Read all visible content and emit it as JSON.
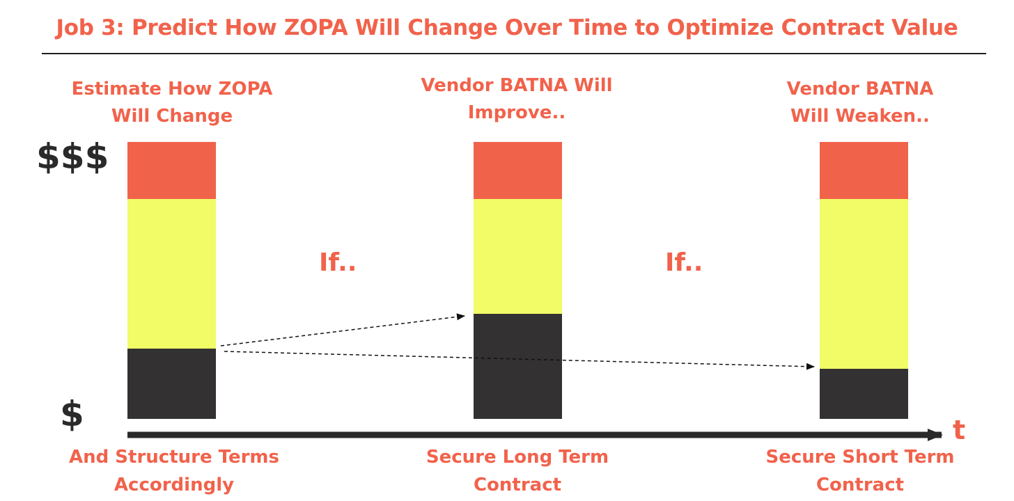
{
  "title": "Job 3: Predict How ZOPA Will Change Over Time to Optimize Contract Value",
  "columns": [
    {
      "heading": [
        "Estimate How ZOPA",
        "Will Change"
      ],
      "footer": [
        "And Structure Terms",
        "Accordingly"
      ],
      "segments": {
        "top_red": 0.2,
        "middle_yellow": 0.53,
        "bottom_dark": 0.25
      }
    },
    {
      "heading": [
        "Vendor BATNA Will",
        "Improve.."
      ],
      "footer": [
        "Secure Long Term",
        "Contract"
      ],
      "segments": {
        "top_red": 0.2,
        "middle_yellow": 0.41,
        "bottom_dark": 0.38
      }
    },
    {
      "heading": [
        "Vendor BATNA",
        "Will Weaken.."
      ],
      "footer": [
        "Secure Short Term",
        "Contract"
      ],
      "segments": {
        "top_red": 0.2,
        "middle_yellow": 0.6,
        "bottom_dark": 0.18
      }
    }
  ],
  "if_labels": [
    "If..",
    "If.."
  ],
  "axis": {
    "high_label": "$$$",
    "low_label": "$",
    "time_label": "t"
  },
  "colors": {
    "accent": "#f1624b",
    "red": "#f1624b",
    "yellow": "#f1fc66",
    "dark": "#333132",
    "text_dark": "#2a2a2a"
  }
}
